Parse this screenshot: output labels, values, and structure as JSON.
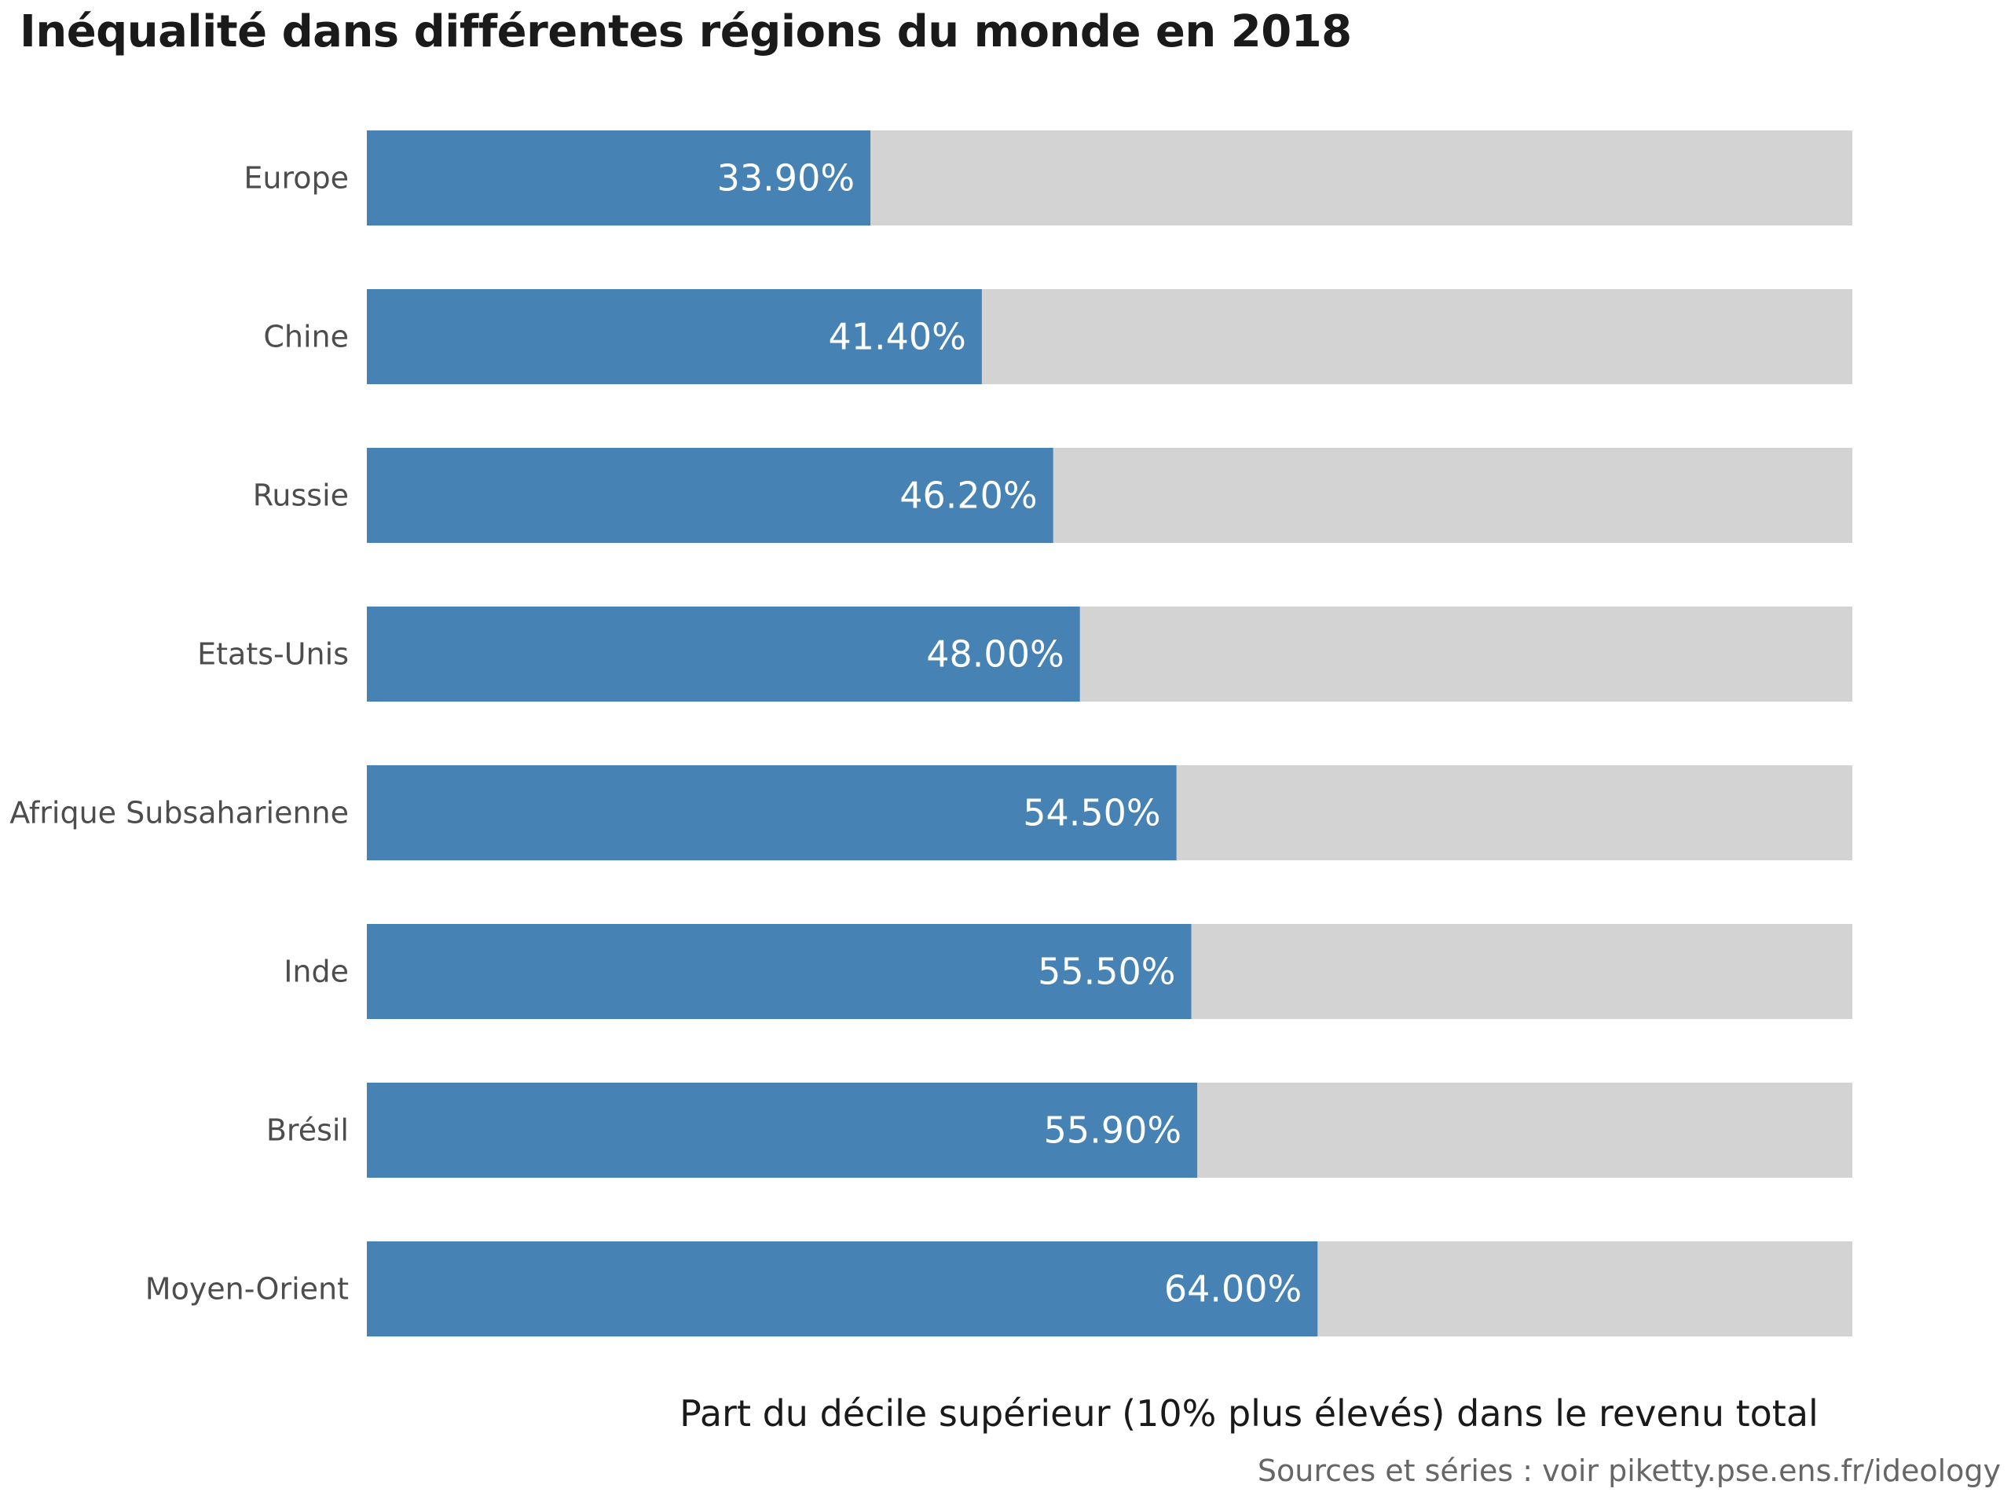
{
  "chart_data": {
    "type": "bar",
    "orientation": "horizontal",
    "title": "Inéqualité dans différentes régions du monde en 2018",
    "xlabel": "Part du décile supérieur (10% plus élevés) dans le revenu total",
    "ylabel": "",
    "xlim": [
      0,
      100
    ],
    "categories": [
      "Europe",
      "Chine",
      "Russie",
      "Etats-Unis",
      "Afrique Subsaharienne",
      "Inde",
      "Brésil",
      "Moyen-Orient"
    ],
    "values": [
      33.9,
      41.4,
      46.2,
      48.0,
      54.5,
      55.5,
      55.9,
      64.0
    ],
    "value_labels": [
      "33.90%",
      "41.40%",
      "46.20%",
      "48.00%",
      "54.50%",
      "55.50%",
      "55.90%",
      "64.00%"
    ],
    "colors": {
      "bar": "#4682b4",
      "background_bar": "#d3d3d3"
    },
    "grid": false,
    "legend": "none"
  },
  "source": "Sources et séries : voir piketty.pse.ens.fr/ideology"
}
